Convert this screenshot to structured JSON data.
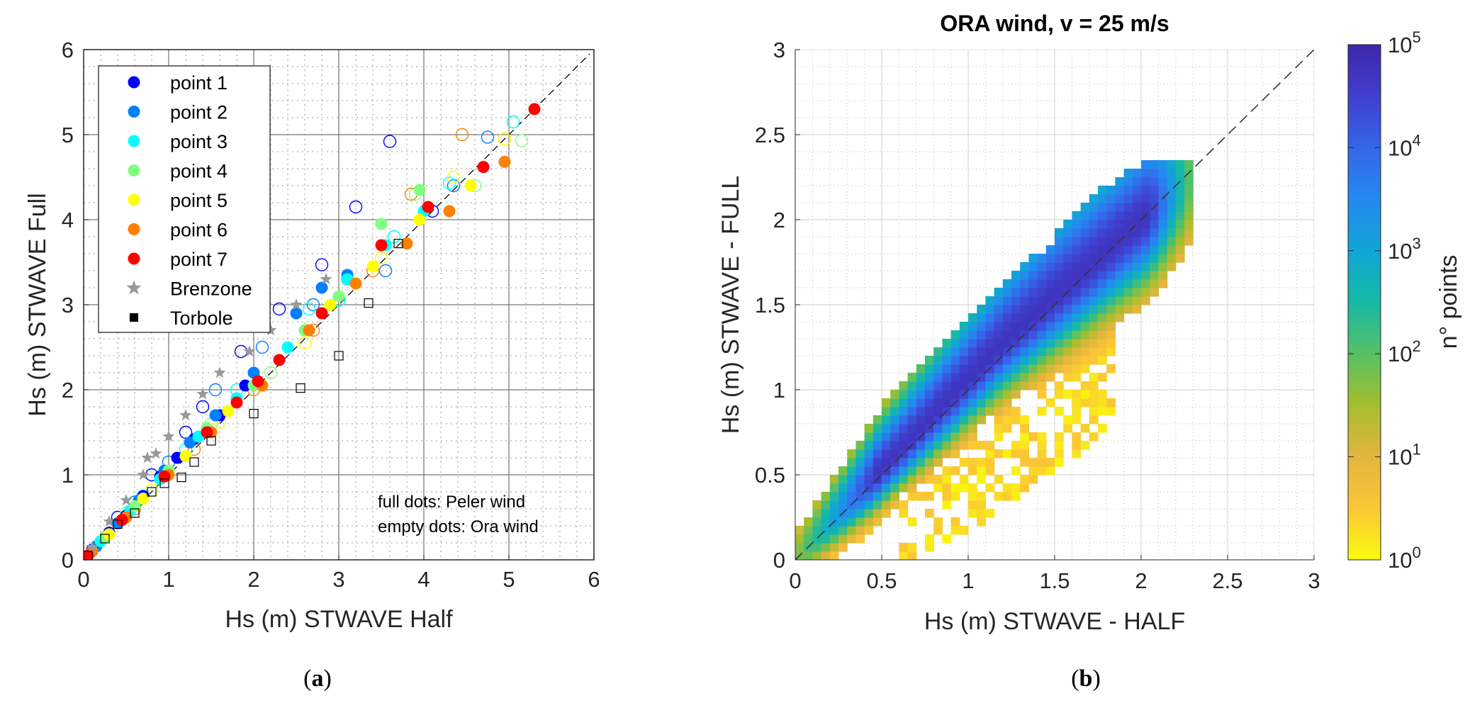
{
  "chart_data": [
    {
      "type": "scatter",
      "panel_label": "a",
      "xlabel": "Hs (m) STWAVE Half",
      "ylabel": "Hs (m) STWAVE Full",
      "xlim": [
        0,
        6
      ],
      "ylim": [
        0,
        6
      ],
      "xticks": [
        "0",
        "1",
        "2",
        "3",
        "4",
        "5",
        "6"
      ],
      "yticks": [
        "0",
        "1",
        "2",
        "3",
        "4",
        "5",
        "6"
      ],
      "grid": true,
      "legend_position": "top-left",
      "annotations": [
        "full dots: Peler wind",
        "empty dots: Ora wind"
      ],
      "series": [
        {
          "name": "point 1",
          "color": "#0000ff",
          "marker": "circle",
          "filled": [
            [
              0.1,
              0.12
            ],
            [
              0.3,
              0.32
            ],
            [
              0.5,
              0.52
            ],
            [
              0.7,
              0.75
            ],
            [
              0.9,
              0.98
            ],
            [
              1.1,
              1.2
            ],
            [
              1.3,
              1.42
            ],
            [
              1.6,
              1.7
            ],
            [
              1.9,
              2.05
            ],
            [
              2.5,
              2.9
            ]
          ],
          "empty": [
            [
              0.4,
              0.5
            ],
            [
              0.8,
              1.0
            ],
            [
              1.2,
              1.5
            ],
            [
              1.4,
              1.8
            ],
            [
              1.85,
              2.45
            ],
            [
              2.3,
              2.95
            ],
            [
              2.8,
              3.47
            ],
            [
              3.2,
              4.15
            ],
            [
              3.6,
              4.92
            ],
            [
              4.1,
              4.1
            ]
          ]
        },
        {
          "name": "point 2",
          "color": "#0080ff",
          "marker": "circle",
          "filled": [
            [
              0.15,
              0.16
            ],
            [
              0.4,
              0.43
            ],
            [
              0.65,
              0.7
            ],
            [
              0.95,
              1.05
            ],
            [
              1.25,
              1.38
            ],
            [
              1.55,
              1.7
            ],
            [
              2.0,
              2.2
            ],
            [
              2.5,
              2.9
            ],
            [
              2.8,
              3.2
            ],
            [
              3.1,
              3.35
            ]
          ],
          "empty": [
            [
              0.6,
              0.68
            ],
            [
              1.0,
              1.15
            ],
            [
              1.55,
              2.0
            ],
            [
              2.1,
              2.5
            ],
            [
              2.7,
              3.0
            ],
            [
              3.1,
              3.3
            ],
            [
              3.55,
              3.4
            ],
            [
              4.35,
              4.4
            ],
            [
              4.75,
              4.97
            ]
          ]
        },
        {
          "name": "point 3",
          "color": "#00ffff",
          "marker": "circle",
          "filled": [
            [
              0.2,
              0.22
            ],
            [
              0.55,
              0.58
            ],
            [
              0.9,
              0.95
            ],
            [
              1.35,
              1.45
            ],
            [
              1.8,
              1.9
            ],
            [
              2.4,
              2.5
            ],
            [
              3.1,
              3.3
            ],
            [
              3.55,
              3.7
            ],
            [
              4.0,
              4.1
            ]
          ],
          "empty": [
            [
              0.7,
              0.75
            ],
            [
              1.2,
              1.3
            ],
            [
              1.8,
              2.0
            ],
            [
              2.65,
              2.95
            ],
            [
              3.0,
              3.05
            ],
            [
              3.65,
              3.8
            ],
            [
              4.3,
              4.43
            ],
            [
              5.05,
              5.15
            ]
          ]
        },
        {
          "name": "point 4",
          "color": "#80ff80",
          "marker": "circle",
          "filled": [
            [
              0.25,
              0.27
            ],
            [
              0.6,
              0.63
            ],
            [
              1.0,
              1.05
            ],
            [
              1.45,
              1.55
            ],
            [
              2.0,
              2.05
            ],
            [
              2.6,
              2.7
            ],
            [
              3.0,
              3.1
            ],
            [
              3.5,
              3.95
            ],
            [
              3.95,
              4.35
            ]
          ],
          "empty": [
            [
              0.5,
              0.55
            ],
            [
              1.5,
              1.6
            ],
            [
              2.2,
              2.2
            ],
            [
              3.1,
              3.3
            ],
            [
              3.9,
              4.3
            ],
            [
              4.6,
              4.4
            ],
            [
              5.15,
              4.93
            ]
          ]
        },
        {
          "name": "point 5",
          "color": "#ffff00",
          "marker": "circle",
          "filled": [
            [
              0.3,
              0.3
            ],
            [
              0.7,
              0.72
            ],
            [
              1.2,
              1.22
            ],
            [
              1.7,
              1.75
            ],
            [
              2.3,
              2.35
            ],
            [
              2.9,
              3.0
            ],
            [
              3.4,
              3.45
            ],
            [
              3.95,
              4.0
            ],
            [
              4.55,
              4.4
            ]
          ],
          "empty": [
            [
              0.8,
              0.82
            ],
            [
              1.6,
              1.62
            ],
            [
              2.6,
              2.55
            ],
            [
              3.5,
              3.55
            ],
            [
              4.35,
              4.5
            ],
            [
              4.95,
              4.95
            ]
          ]
        },
        {
          "name": "point 6",
          "color": "#ff8000",
          "marker": "circle",
          "filled": [
            [
              0.1,
              0.1
            ],
            [
              0.5,
              0.5
            ],
            [
              1.0,
              1.0
            ],
            [
              1.5,
              1.5
            ],
            [
              2.1,
              2.05
            ],
            [
              2.65,
              2.7
            ],
            [
              3.2,
              3.25
            ],
            [
              3.8,
              3.72
            ],
            [
              4.3,
              4.1
            ],
            [
              4.95,
              4.68
            ]
          ],
          "empty": [
            [
              0.6,
              0.6
            ],
            [
              1.3,
              1.3
            ],
            [
              2.0,
              2.0
            ],
            [
              2.7,
              2.7
            ],
            [
              3.4,
              3.4
            ],
            [
              3.85,
              4.3
            ],
            [
              4.45,
              5.0
            ]
          ]
        },
        {
          "name": "point 7",
          "color": "#ff0000",
          "marker": "circle",
          "filled": [
            [
              0.05,
              0.05
            ],
            [
              0.45,
              0.47
            ],
            [
              0.95,
              0.98
            ],
            [
              1.45,
              1.5
            ],
            [
              1.8,
              1.85
            ],
            [
              2.05,
              2.1
            ],
            [
              2.3,
              2.35
            ],
            [
              2.8,
              2.9
            ],
            [
              3.5,
              3.7
            ],
            [
              4.05,
              4.15
            ],
            [
              4.7,
              4.62
            ],
            [
              5.3,
              5.3
            ]
          ],
          "empty": []
        },
        {
          "name": "Brenzone",
          "color": "#999999",
          "marker": "star",
          "points": [
            [
              0.1,
              0.15
            ],
            [
              0.3,
              0.45
            ],
            [
              0.5,
              0.7
            ],
            [
              0.7,
              1.0
            ],
            [
              0.75,
              1.2
            ],
            [
              0.85,
              1.25
            ],
            [
              1.0,
              1.45
            ],
            [
              1.2,
              1.7
            ],
            [
              1.4,
              1.95
            ],
            [
              1.6,
              2.2
            ],
            [
              1.95,
              2.45
            ],
            [
              2.2,
              2.7
            ],
            [
              2.5,
              3.0
            ],
            [
              2.85,
              3.3
            ]
          ]
        },
        {
          "name": "Torbole",
          "color": "#000000",
          "marker": "square",
          "points": [
            [
              0.05,
              0.05
            ],
            [
              0.25,
              0.25
            ],
            [
              0.4,
              0.42
            ],
            [
              0.6,
              0.55
            ],
            [
              0.8,
              0.8
            ],
            [
              0.95,
              0.9
            ],
            [
              1.15,
              0.97
            ],
            [
              1.3,
              1.15
            ],
            [
              1.5,
              1.4
            ],
            [
              2.0,
              1.72
            ],
            [
              2.55,
              2.02
            ],
            [
              3.0,
              2.4
            ],
            [
              3.35,
              3.02
            ],
            [
              3.7,
              3.72
            ]
          ]
        }
      ]
    },
    {
      "type": "heatmap",
      "panel_label": "b",
      "title": "ORA wind, v = 25 m/s",
      "xlabel": "Hs (m) STWAVE - HALF",
      "ylabel": "Hs (m) STWAVE - FULL",
      "xlim": [
        0,
        3
      ],
      "ylim": [
        0,
        3
      ],
      "xticks": [
        "0",
        "0.5",
        "1",
        "1.5",
        "2",
        "2.5",
        "3"
      ],
      "yticks": [
        "0",
        "0.5",
        "1",
        "1.5",
        "2",
        "2.5",
        "3"
      ],
      "bin_size": 0.05,
      "colorbar": {
        "label": "n° points",
        "scale": "log",
        "min": 1,
        "max": 100000,
        "tick_base": "10",
        "tick_exponents": [
          "0",
          "1",
          "2",
          "3",
          "4",
          "5"
        ]
      },
      "colormap": [
        "#f9fb0e",
        "#fbc735",
        "#e3b43f",
        "#a5be2d",
        "#56c065",
        "#17b9a5",
        "#11a5d6",
        "#2589f0",
        "#3566e9",
        "#403fce",
        "#3e26a8"
      ],
      "ridge": {
        "x_start": 0,
        "x_end": 2.3,
        "peak_log10": 4.7
      },
      "grid": true
    }
  ]
}
